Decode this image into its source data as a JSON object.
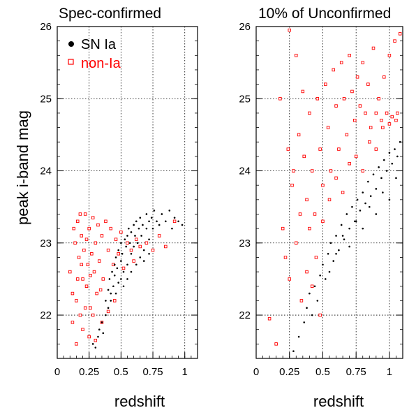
{
  "chart_data": [
    {
      "type": "scatter",
      "title": "Spec-confirmed",
      "xlabel": "redshift",
      "ylabel": "peak i-band mag",
      "xlim": [
        0,
        1.1
      ],
      "ylim": [
        21.4,
        26
      ],
      "xticks": [
        "0",
        "0.25",
        "0.5",
        "0.75",
        "1"
      ],
      "yticks": [
        "22",
        "23",
        "24",
        "25",
        "26"
      ],
      "grid": true,
      "legend": {
        "position": "top-left",
        "entries": [
          {
            "label": "SN Ia",
            "marker": "filled-circle",
            "color": "#000000"
          },
          {
            "label": "non-Ia",
            "marker": "open-square",
            "color": "#ff0000"
          }
        ]
      },
      "series": [
        {
          "name": "SN Ia",
          "color": "#000000",
          "marker": "dot",
          "points": [
            [
              0.28,
              21.6
            ],
            [
              0.3,
              21.55
            ],
            [
              0.32,
              21.7
            ],
            [
              0.33,
              21.8
            ],
            [
              0.35,
              21.9
            ],
            [
              0.36,
              21.75
            ],
            [
              0.38,
              22.0
            ],
            [
              0.38,
              22.2
            ],
            [
              0.4,
              22.1
            ],
            [
              0.4,
              22.35
            ],
            [
              0.41,
              22.5
            ],
            [
              0.42,
              22.3
            ],
            [
              0.43,
              22.6
            ],
            [
              0.44,
              22.4
            ],
            [
              0.45,
              22.7
            ],
            [
              0.45,
              22.55
            ],
            [
              0.46,
              22.8
            ],
            [
              0.47,
              22.65
            ],
            [
              0.48,
              22.9
            ],
            [
              0.48,
              22.45
            ],
            [
              0.5,
              22.75
            ],
            [
              0.5,
              23.0
            ],
            [
              0.51,
              22.85
            ],
            [
              0.52,
              22.6
            ],
            [
              0.53,
              23.05
            ],
            [
              0.54,
              22.95
            ],
            [
              0.55,
              23.1
            ],
            [
              0.55,
              22.7
            ],
            [
              0.56,
              23.2
            ],
            [
              0.57,
              23.0
            ],
            [
              0.58,
              22.85
            ],
            [
              0.58,
              23.15
            ],
            [
              0.6,
              23.25
            ],
            [
              0.6,
              22.95
            ],
            [
              0.61,
              23.1
            ],
            [
              0.62,
              23.3
            ],
            [
              0.63,
              23.0
            ],
            [
              0.64,
              23.2
            ],
            [
              0.65,
              23.35
            ],
            [
              0.66,
              23.1
            ],
            [
              0.67,
              23.25
            ],
            [
              0.68,
              22.9
            ],
            [
              0.7,
              23.2
            ],
            [
              0.7,
              23.4
            ],
            [
              0.72,
              23.3
            ],
            [
              0.72,
              23.05
            ],
            [
              0.74,
              23.35
            ],
            [
              0.75,
              23.2
            ],
            [
              0.76,
              23.45
            ],
            [
              0.78,
              23.3
            ],
            [
              0.8,
              23.25
            ],
            [
              0.82,
              23.4
            ],
            [
              0.85,
              23.3
            ],
            [
              0.88,
              23.45
            ],
            [
              0.9,
              23.2
            ],
            [
              0.92,
              23.35
            ],
            [
              0.95,
              23.3
            ],
            [
              0.98,
              23.25
            ],
            [
              0.42,
              22.2
            ],
            [
              0.46,
              22.3
            ],
            [
              0.5,
              22.5
            ],
            [
              0.52,
              22.4
            ],
            [
              0.55,
              22.5
            ],
            [
              0.58,
              22.6
            ],
            [
              0.62,
              22.7
            ],
            [
              0.65,
              22.8
            ],
            [
              0.68,
              22.75
            ],
            [
              0.72,
              22.85
            ]
          ]
        },
        {
          "name": "non-Ia",
          "color": "#ff0000",
          "marker": "open-square",
          "points": [
            [
              0.1,
              22.6
            ],
            [
              0.12,
              22.3
            ],
            [
              0.14,
              23.0
            ],
            [
              0.15,
              22.2
            ],
            [
              0.16,
              23.3
            ],
            [
              0.17,
              22.8
            ],
            [
              0.18,
              22.0
            ],
            [
              0.19,
              23.1
            ],
            [
              0.2,
              22.5
            ],
            [
              0.21,
              22.9
            ],
            [
              0.22,
              23.4
            ],
            [
              0.23,
              22.4
            ],
            [
              0.24,
              22.7
            ],
            [
              0.25,
              23.2
            ],
            [
              0.26,
              22.1
            ],
            [
              0.27,
              22.85
            ],
            [
              0.28,
              23.35
            ],
            [
              0.29,
              22.6
            ],
            [
              0.3,
              23.0
            ],
            [
              0.31,
              22.3
            ],
            [
              0.32,
              23.25
            ],
            [
              0.33,
              22.75
            ],
            [
              0.35,
              23.1
            ],
            [
              0.36,
              22.5
            ],
            [
              0.38,
              23.3
            ],
            [
              0.4,
              22.9
            ],
            [
              0.42,
              23.2
            ],
            [
              0.44,
              22.7
            ],
            [
              0.46,
              23.05
            ],
            [
              0.48,
              22.85
            ],
            [
              0.5,
              23.15
            ],
            [
              0.52,
              22.65
            ],
            [
              0.55,
              23.0
            ],
            [
              0.58,
              22.9
            ],
            [
              0.6,
              22.75
            ],
            [
              0.62,
              23.05
            ],
            [
              0.65,
              22.95
            ],
            [
              0.7,
              23.0
            ],
            [
              0.75,
              22.9
            ],
            [
              0.8,
              23.1
            ],
            [
              0.85,
              22.95
            ],
            [
              0.92,
              23.3
            ],
            [
              0.12,
              21.9
            ],
            [
              0.15,
              21.6
            ],
            [
              0.2,
              21.8
            ],
            [
              0.25,
              21.7
            ],
            [
              0.3,
              21.65
            ],
            [
              0.35,
              21.9
            ],
            [
              0.4,
              22.05
            ],
            [
              0.45,
              22.2
            ],
            [
              0.13,
              23.2
            ],
            [
              0.18,
              23.4
            ],
            [
              0.22,
              22.1
            ],
            [
              0.28,
              22.0
            ],
            [
              0.34,
              22.35
            ],
            [
              0.16,
              22.5
            ],
            [
              0.19,
              22.7
            ],
            [
              0.23,
              23.05
            ],
            [
              0.26,
              22.55
            ]
          ]
        }
      ]
    },
    {
      "type": "scatter",
      "title": "10% of Unconfirmed",
      "xlabel": "redshift",
      "ylabel": "",
      "xlim": [
        0,
        1.1
      ],
      "ylim": [
        21.4,
        26
      ],
      "xticks": [
        "0",
        "0.25",
        "0.5",
        "0.75",
        "1"
      ],
      "yticks": [
        "22",
        "23",
        "24",
        "25",
        "26"
      ],
      "grid": true,
      "series": [
        {
          "name": "SN Ia",
          "color": "#000000",
          "marker": "dot",
          "points": [
            [
              0.28,
              21.5
            ],
            [
              0.32,
              21.7
            ],
            [
              0.36,
              21.9
            ],
            [
              0.38,
              22.1
            ],
            [
              0.4,
              22.3
            ],
            [
              0.42,
              22.0
            ],
            [
              0.44,
              22.4
            ],
            [
              0.46,
              22.2
            ],
            [
              0.48,
              22.55
            ],
            [
              0.5,
              22.7
            ],
            [
              0.52,
              22.5
            ],
            [
              0.54,
              22.85
            ],
            [
              0.56,
              23.0
            ],
            [
              0.58,
              22.75
            ],
            [
              0.6,
              23.1
            ],
            [
              0.62,
              22.9
            ],
            [
              0.64,
              23.25
            ],
            [
              0.66,
              23.05
            ],
            [
              0.68,
              23.4
            ],
            [
              0.7,
              23.2
            ],
            [
              0.72,
              23.5
            ],
            [
              0.74,
              23.3
            ],
            [
              0.76,
              23.6
            ],
            [
              0.78,
              23.45
            ],
            [
              0.8,
              23.7
            ],
            [
              0.82,
              23.55
            ],
            [
              0.84,
              23.85
            ],
            [
              0.86,
              23.65
            ],
            [
              0.88,
              23.95
            ],
            [
              0.9,
              23.75
            ],
            [
              0.92,
              24.05
            ],
            [
              0.94,
              23.9
            ],
            [
              0.96,
              24.15
            ],
            [
              0.98,
              24.0
            ],
            [
              1.0,
              24.25
            ],
            [
              1.02,
              24.1
            ],
            [
              1.04,
              24.3
            ],
            [
              1.06,
              24.2
            ],
            [
              1.08,
              24.4
            ],
            [
              0.55,
              22.6
            ],
            [
              0.6,
              22.85
            ],
            [
              0.65,
              23.1
            ],
            [
              0.7,
              22.95
            ],
            [
              0.75,
              23.3
            ],
            [
              0.8,
              23.2
            ],
            [
              0.85,
              23.5
            ],
            [
              0.9,
              23.4
            ],
            [
              0.95,
              23.7
            ],
            [
              1.0,
              23.6
            ],
            [
              1.05,
              23.9
            ]
          ]
        },
        {
          "name": "non-Ia",
          "color": "#ff0000",
          "marker": "open-square",
          "points": [
            [
              0.1,
              21.95
            ],
            [
              0.15,
              21.6
            ],
            [
              0.2,
              23.2
            ],
            [
              0.22,
              22.8
            ],
            [
              0.25,
              22.5
            ],
            [
              0.28,
              24.0
            ],
            [
              0.3,
              23.0
            ],
            [
              0.32,
              24.5
            ],
            [
              0.34,
              22.2
            ],
            [
              0.36,
              24.2
            ],
            [
              0.38,
              23.6
            ],
            [
              0.4,
              24.8
            ],
            [
              0.42,
              24.0
            ],
            [
              0.44,
              23.4
            ],
            [
              0.46,
              25.0
            ],
            [
              0.48,
              24.3
            ],
            [
              0.5,
              23.8
            ],
            [
              0.52,
              25.2
            ],
            [
              0.54,
              24.6
            ],
            [
              0.56,
              24.0
            ],
            [
              0.58,
              25.4
            ],
            [
              0.6,
              24.9
            ],
            [
              0.62,
              24.3
            ],
            [
              0.64,
              25.5
            ],
            [
              0.66,
              25.0
            ],
            [
              0.68,
              24.5
            ],
            [
              0.7,
              25.6
            ],
            [
              0.72,
              25.1
            ],
            [
              0.74,
              24.7
            ],
            [
              0.76,
              25.3
            ],
            [
              0.78,
              24.9
            ],
            [
              0.8,
              25.5
            ],
            [
              0.82,
              24.8
            ],
            [
              0.84,
              25.2
            ],
            [
              0.86,
              24.6
            ],
            [
              0.88,
              25.7
            ],
            [
              0.9,
              24.8
            ],
            [
              0.92,
              25.0
            ],
            [
              0.94,
              24.7
            ],
            [
              0.96,
              25.3
            ],
            [
              0.98,
              24.8
            ],
            [
              1.0,
              25.6
            ],
            [
              1.02,
              24.75
            ],
            [
              1.04,
              25.8
            ],
            [
              1.06,
              24.8
            ],
            [
              1.08,
              25.9
            ],
            [
              0.25,
              25.95
            ],
            [
              0.18,
              25.0
            ],
            [
              0.3,
              25.6
            ],
            [
              0.35,
              25.1
            ],
            [
              0.4,
              23.2
            ],
            [
              0.45,
              22.8
            ],
            [
              0.5,
              23.3
            ],
            [
              0.55,
              23.6
            ],
            [
              0.6,
              23.9
            ],
            [
              0.65,
              23.7
            ],
            [
              0.7,
              24.1
            ],
            [
              0.75,
              24.2
            ],
            [
              0.8,
              24.0
            ],
            [
              0.85,
              24.4
            ],
            [
              0.9,
              24.3
            ],
            [
              0.95,
              24.6
            ],
            [
              1.0,
              24.65
            ],
            [
              1.05,
              24.7
            ],
            [
              0.38,
              22.6
            ],
            [
              0.42,
              22.4
            ],
            [
              0.48,
              22.0
            ],
            [
              0.33,
              23.4
            ],
            [
              0.27,
              23.8
            ],
            [
              0.24,
              24.3
            ]
          ]
        }
      ]
    }
  ]
}
